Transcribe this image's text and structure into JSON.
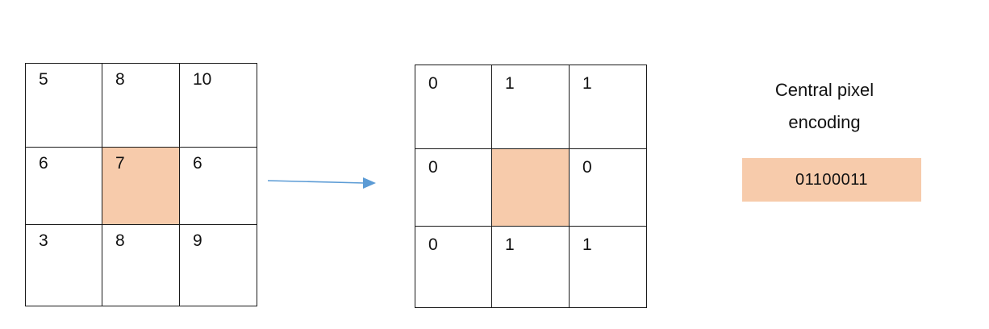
{
  "input_grid": [
    [
      "5",
      "8",
      "10"
    ],
    [
      "6",
      "7",
      "6"
    ],
    [
      "3",
      "8",
      "9"
    ]
  ],
  "binary_grid": [
    [
      "0",
      "1",
      "1"
    ],
    [
      "0",
      "",
      "0"
    ],
    [
      "0",
      "1",
      "1"
    ]
  ],
  "encoding": {
    "title_line1": "Central pixel",
    "title_line2": "encoding",
    "code": "01100011"
  },
  "colors": {
    "center_fill": "#f7cbab",
    "arrow": "#5b9bd5",
    "grid_line": "#1a1a1a"
  }
}
